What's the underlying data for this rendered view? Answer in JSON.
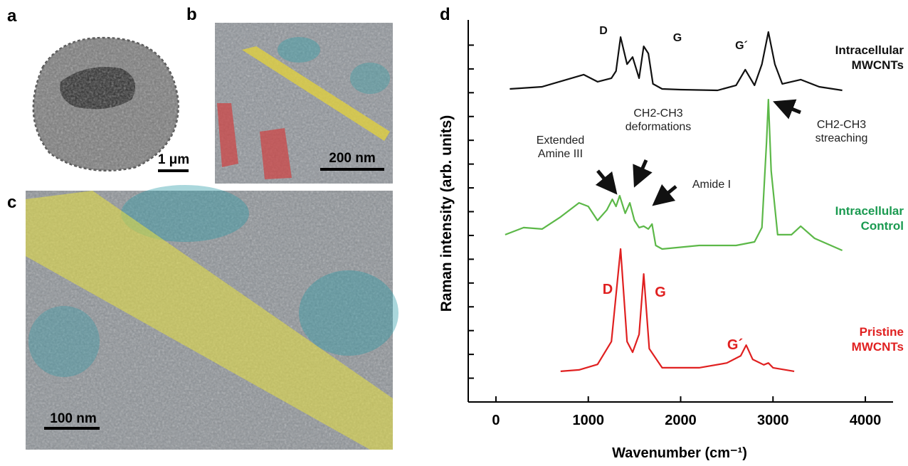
{
  "panels": {
    "a": {
      "label": "a",
      "scale_bar": "1 μm"
    },
    "b": {
      "label": "b",
      "scale_bar": "200 nm"
    },
    "c": {
      "label": "c",
      "scale_bar": "100 nm"
    },
    "d": {
      "label": "d"
    }
  },
  "chart_data": {
    "type": "line",
    "x_label": "Wavenumber (cm⁻¹)",
    "y_label": "Raman intensity (arb. units)",
    "xlim": [
      -300,
      4300
    ],
    "xticks": [
      0,
      1000,
      2000,
      3000,
      4000
    ],
    "ylim": [
      0,
      16
    ],
    "yticks": [
      1,
      2,
      3,
      4,
      5,
      6,
      7,
      8,
      9,
      10,
      11,
      12,
      13,
      14,
      15
    ],
    "series": [
      {
        "name": "Intracellular MWCNTs",
        "color": "#111111",
        "x": [
          150,
          500,
          950,
          1100,
          1250,
          1300,
          1350,
          1420,
          1480,
          1550,
          1600,
          1650,
          1700,
          1800,
          2000,
          2400,
          2600,
          2700,
          2800,
          2880,
          2950,
          3020,
          3100,
          3300,
          3500,
          3750
        ],
        "values": [
          13.16,
          13.25,
          13.76,
          13.46,
          13.61,
          13.91,
          15.34,
          14.2,
          14.5,
          13.61,
          14.95,
          14.65,
          13.37,
          13.16,
          13.13,
          13.1,
          13.31,
          13.97,
          13.31,
          14.2,
          15.55,
          14.2,
          13.37,
          13.55,
          13.25,
          13.1
        ]
      },
      {
        "name": "Intracellular Control",
        "color": "#5cb848",
        "x": [
          100,
          300,
          500,
          700,
          900,
          1000,
          1100,
          1200,
          1260,
          1300,
          1340,
          1400,
          1450,
          1500,
          1550,
          1600,
          1650,
          1690,
          1730,
          1800,
          2200,
          2600,
          2800,
          2880,
          2930,
          2950,
          2980,
          3050,
          3200,
          3300,
          3450,
          3750
        ],
        "values": [
          7.03,
          7.33,
          7.27,
          7.78,
          8.37,
          8.22,
          7.63,
          8.07,
          8.52,
          8.22,
          8.67,
          7.93,
          8.37,
          7.63,
          7.33,
          7.39,
          7.27,
          7.48,
          6.58,
          6.43,
          6.58,
          6.58,
          6.73,
          7.33,
          10.92,
          12.71,
          9.72,
          7.03,
          7.03,
          7.39,
          6.88,
          6.37
        ]
      },
      {
        "name": "Pristine MWCNTs",
        "color": "#e02020",
        "x": [
          700,
          900,
          1100,
          1250,
          1350,
          1420,
          1480,
          1550,
          1600,
          1660,
          1800,
          2200,
          2500,
          2650,
          2710,
          2780,
          2900,
          2950,
          3000,
          3230
        ],
        "values": [
          1.29,
          1.35,
          1.58,
          2.54,
          6.43,
          2.54,
          2.09,
          2.84,
          5.38,
          2.24,
          1.44,
          1.44,
          1.64,
          1.94,
          2.39,
          1.79,
          1.56,
          1.64,
          1.44,
          1.29
        ]
      }
    ],
    "annotations": [
      "D",
      "G",
      "G´",
      "Extended Amine III",
      "CH2-CH3 deformations",
      "Amide I",
      "CH2-CH3 streaching",
      "D",
      "G",
      "G´"
    ]
  }
}
